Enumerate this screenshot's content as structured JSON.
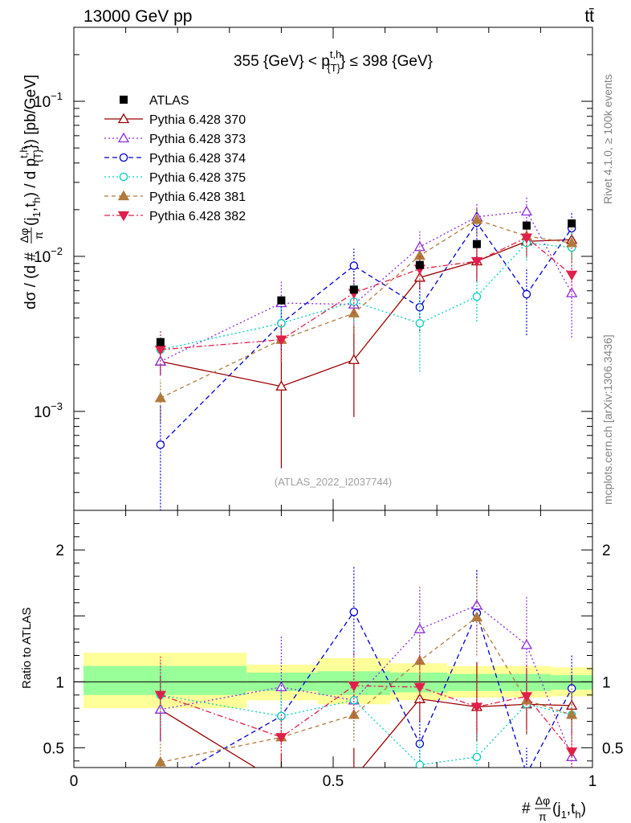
{
  "header": {
    "energy_label": "13000 GeV pp",
    "process_label": "tt̄"
  },
  "side_labels": {
    "rivet": "Rivet 4.1.0, ≥ 100k events",
    "mcplots": "mcplots.cern.ch [arXiv:1306.3436]"
  },
  "chart_data": {
    "type": "scatter",
    "title": "355 {GeV} < p^{t,h}_{T} ≤ 398 {GeV}",
    "title_parts": {
      "pre": "355 {GeV} < p",
      "sup": "t,h",
      "sub": "{T}",
      "post": "} ≤ 398 {GeV}"
    },
    "watermark": "(ATLAS_2022_I2037744)",
    "ylabel": "dσ / (d #Δφ/π(j1,th) / d p{T}t,h}) [pb/GeV]",
    "ylabel_parts": {
      "p1": "dσ / (d #",
      "frac_num": "Δφ",
      "frac_den": "π",
      "p2": "(j",
      "sub1": "1",
      "p3": ",t",
      "sub2": "h",
      "p4": ") / d p",
      "sup3": "t,h",
      "sub3": "{T}",
      "p5": "}) [pb/GeV]"
    },
    "xlabel_parts": {
      "p1": "#",
      "frac_num": "Δφ",
      "frac_den": "π",
      "p2": "(j",
      "sub1": "1",
      "p3": ",t",
      "sub2": "h",
      "p4": ")"
    },
    "ratio_ylabel": "Ratio to ATLAS",
    "xlim": [
      0,
      1
    ],
    "ylim_main": [
      0.00023,
      0.3
    ],
    "ylim_ratio": [
      0.35,
      2.3
    ],
    "yscale_main": "log",
    "x_ticks": [
      0,
      0.5,
      1
    ],
    "x_tick_labels": [
      "0",
      "0.5",
      "1"
    ],
    "y_ticks_main": [
      0.001,
      0.01,
      0.1
    ],
    "y_tick_labels_main": [
      {
        "base": "10",
        "exp": "−3"
      },
      {
        "base": "10",
        "exp": "−2"
      },
      {
        "base": "10",
        "exp": "−1"
      }
    ],
    "y_ticks_ratio": [
      0.5,
      1,
      2
    ],
    "y_tick_labels_ratio": [
      "0.5",
      "1",
      "2"
    ],
    "x": [
      0.167,
      0.4,
      0.54,
      0.667,
      0.777,
      0.873,
      0.96
    ],
    "data_series": {
      "name": "ATLAS",
      "values": [
        0.0028,
        0.0052,
        0.0061,
        0.0088,
        0.012,
        0.0158,
        0.0163
      ]
    },
    "ratio_bands": {
      "edges": [
        0,
        0.333,
        0.47,
        0.61,
        0.72,
        0.82,
        0.92,
        1.0
      ],
      "green": [
        [
          0.9,
          1.12
        ],
        [
          0.93,
          1.07
        ],
        [
          0.9,
          1.08
        ],
        [
          0.92,
          1.07
        ],
        [
          0.93,
          1.06
        ],
        [
          0.93,
          1.06
        ],
        [
          0.94,
          1.05
        ]
      ],
      "yellow": [
        [
          0.8,
          1.22
        ],
        [
          0.86,
          1.13
        ],
        [
          0.83,
          1.18
        ],
        [
          0.86,
          1.14
        ],
        [
          0.88,
          1.12
        ],
        [
          0.88,
          1.12
        ],
        [
          0.89,
          1.11
        ]
      ]
    },
    "series": [
      {
        "name": "Pythia 6.428 370",
        "color": "#9b0000",
        "marker": "triangle-up-open",
        "dash": "",
        "values": [
          0.0021,
          0.00145,
          0.00215,
          0.0073,
          0.0093,
          0.0125,
          0.0128
        ],
        "err_lo": [
          0.0017,
          0.00043,
          0.00092,
          0.0061,
          0.0069,
          0.0098,
          0.0095
        ],
        "err_hi": [
          0.0026,
          0.0039,
          0.0036,
          0.0095,
          0.0125,
          0.0165,
          0.0168
        ],
        "ratio": [
          0.79,
          0.23,
          0.27,
          0.87,
          0.81,
          0.83,
          0.82
        ],
        "ratio_err_lo": [
          0.55,
          0.08,
          0.1,
          0.7,
          0.55,
          0.6,
          0.6
        ],
        "ratio_err_hi": [
          1.05,
          0.45,
          0.5,
          1.05,
          1.15,
          1.1,
          1.05
        ]
      },
      {
        "name": "Pythia 6.428 373",
        "color": "#8a2be2",
        "marker": "triangle-up-open",
        "dash": "2,3",
        "values": [
          0.0021,
          0.005,
          0.0049,
          0.0115,
          0.018,
          0.0195,
          0.0058
        ],
        "err_lo": [
          0.0017,
          0.0036,
          0.0036,
          0.0088,
          0.0145,
          0.0145,
          0.003
        ],
        "err_hi": [
          0.0026,
          0.007,
          0.0065,
          0.0145,
          0.022,
          0.0245,
          0.0086
        ],
        "ratio": [
          0.79,
          0.96,
          0.86,
          1.4,
          1.58,
          1.28,
          0.43
        ],
        "ratio_err_lo": [
          0.55,
          0.6,
          0.6,
          1.1,
          1.3,
          0.9,
          0.2
        ],
        "ratio_err_hi": [
          1.05,
          1.35,
          1.1,
          1.72,
          1.85,
          1.65,
          0.65
        ]
      },
      {
        "name": "Pythia 6.428 374",
        "color": "#0000d0",
        "marker": "circle-open",
        "dash": "6,4",
        "values": [
          0.00061,
          0.0037,
          0.0087,
          0.0047,
          0.0165,
          0.0057,
          0.0152
        ],
        "err_lo": [
          0.00018,
          0.0025,
          0.0065,
          0.0033,
          0.0128,
          0.0031,
          0.0115
        ],
        "err_hi": [
          0.0011,
          0.005,
          0.0112,
          0.0063,
          0.0205,
          0.0085,
          0.0195
        ],
        "ratio": [
          0.22,
          0.74,
          1.53,
          0.53,
          1.52,
          0.3,
          0.95
        ],
        "ratio_err_lo": [
          0.05,
          0.5,
          1.2,
          0.35,
          1.2,
          0.1,
          0.7
        ],
        "ratio_err_hi": [
          0.4,
          1.0,
          1.88,
          0.72,
          1.85,
          0.5,
          1.2
        ]
      },
      {
        "name": "Pythia 6.428 375",
        "color": "#00d0c0",
        "marker": "circle-open",
        "dash": "2,3",
        "values": [
          0.0025,
          0.0037,
          0.0051,
          0.0037,
          0.0055,
          0.0122,
          0.0114
        ],
        "err_lo": [
          0.002,
          0.0027,
          0.0038,
          0.0018,
          0.0038,
          0.0094,
          0.0086
        ],
        "err_hi": [
          0.0031,
          0.0048,
          0.0066,
          0.0056,
          0.0072,
          0.015,
          0.0142
        ],
        "ratio": [
          0.9,
          0.74,
          0.86,
          0.37,
          0.43,
          0.83,
          0.75
        ],
        "ratio_err_lo": [
          0.65,
          0.55,
          0.6,
          0.2,
          0.25,
          0.6,
          0.55
        ],
        "ratio_err_hi": [
          1.15,
          0.95,
          1.1,
          0.55,
          0.62,
          1.06,
          0.95
        ]
      },
      {
        "name": "Pythia 6.428 381",
        "color": "#b07a3c",
        "marker": "triangle-up-filled",
        "dash": "5,4",
        "values": [
          0.00122,
          0.0029,
          0.0043,
          0.0101,
          0.0172,
          0.0135,
          0.0122
        ],
        "err_lo": [
          0.00085,
          0.0022,
          0.0032,
          0.0078,
          0.0138,
          0.0104,
          0.0092
        ],
        "err_hi": [
          0.0016,
          0.0037,
          0.0054,
          0.0124,
          0.0206,
          0.0166,
          0.0152
        ],
        "ratio": [
          0.39,
          0.58,
          0.75,
          1.16,
          1.49,
          0.86,
          0.75
        ],
        "ratio_err_lo": [
          0.25,
          0.4,
          0.55,
          0.9,
          1.2,
          0.6,
          0.5
        ],
        "ratio_err_hi": [
          0.55,
          0.75,
          0.95,
          1.42,
          1.78,
          1.12,
          1.0
        ]
      },
      {
        "name": "Pythia 6.428 382",
        "color": "#e0204a",
        "marker": "triangle-down-filled",
        "dash": "7,3,2,3",
        "values": [
          0.0025,
          0.0029,
          0.0058,
          0.0083,
          0.0093,
          0.0132,
          0.0076
        ],
        "err_lo": [
          0.0019,
          0.0021,
          0.0043,
          0.0064,
          0.0071,
          0.0101,
          0.0056
        ],
        "err_hi": [
          0.0033,
          0.0037,
          0.0073,
          0.0102,
          0.0115,
          0.0163,
          0.0096
        ],
        "ratio": [
          0.9,
          0.58,
          0.97,
          0.96,
          0.81,
          0.89,
          0.47
        ],
        "ratio_err_lo": [
          0.62,
          0.4,
          0.72,
          0.72,
          0.6,
          0.65,
          0.3
        ],
        "ratio_err_hi": [
          1.2,
          0.76,
          1.22,
          1.2,
          1.02,
          1.13,
          0.64
        ]
      }
    ]
  }
}
